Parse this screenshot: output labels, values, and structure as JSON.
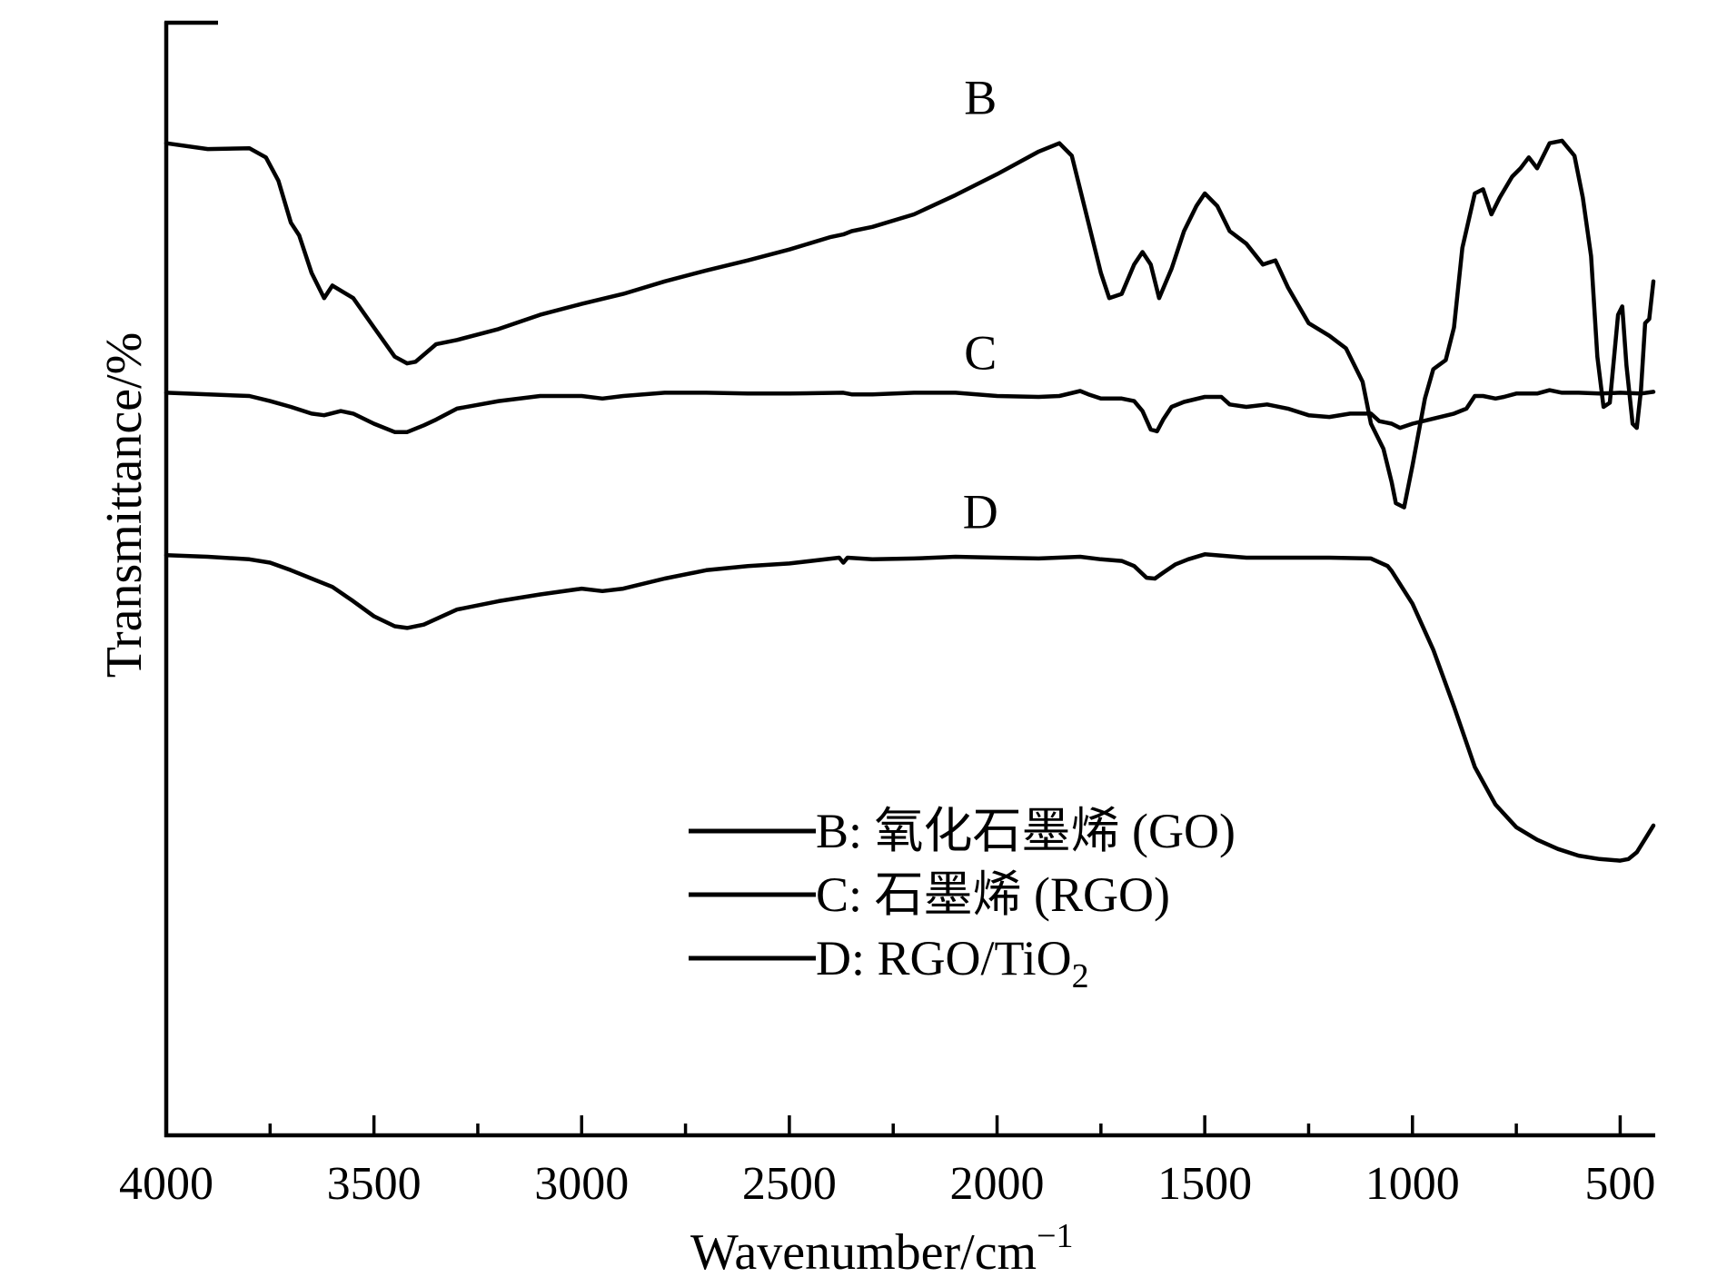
{
  "chart_data": {
    "type": "line",
    "title": "",
    "xlabel": "Wavenumber/cm",
    "xlabel_superscript": "−1",
    "ylabel": "Transmittance/%",
    "xlim": [
      4000,
      420
    ],
    "x_reversed": true,
    "x_ticks": [
      4000,
      3500,
      3000,
      2500,
      2000,
      1500,
      1000,
      500
    ],
    "x_minor_ticks": [
      3750,
      3250,
      2750,
      2250,
      1750,
      1250,
      750
    ],
    "y_ticks": "none",
    "grid": false,
    "legend_position": "center",
    "series": [
      {
        "name": "B",
        "legend": "B: 氧化石墨烯 (GO)",
        "points": [
          [
            4000,
            85.5
          ],
          [
            3900,
            84.8
          ],
          [
            3800,
            84.9
          ],
          [
            3760,
            83.8
          ],
          [
            3730,
            81
          ],
          [
            3700,
            76
          ],
          [
            3680,
            74.5
          ],
          [
            3650,
            70
          ],
          [
            3620,
            67
          ],
          [
            3600,
            68.5
          ],
          [
            3550,
            67
          ],
          [
            3500,
            63.5
          ],
          [
            3450,
            60
          ],
          [
            3420,
            59.2
          ],
          [
            3400,
            59.4
          ],
          [
            3350,
            61.5
          ],
          [
            3300,
            62
          ],
          [
            3200,
            63.3
          ],
          [
            3100,
            65
          ],
          [
            3000,
            66.3
          ],
          [
            2900,
            67.5
          ],
          [
            2800,
            69
          ],
          [
            2700,
            70.3
          ],
          [
            2600,
            71.5
          ],
          [
            2500,
            72.8
          ],
          [
            2400,
            74.3
          ],
          [
            2370,
            74.6
          ],
          [
            2350,
            75
          ],
          [
            2300,
            75.5
          ],
          [
            2200,
            77
          ],
          [
            2100,
            79.3
          ],
          [
            2000,
            81.8
          ],
          [
            1900,
            84.5
          ],
          [
            1850,
            85.5
          ],
          [
            1820,
            84
          ],
          [
            1780,
            76
          ],
          [
            1750,
            70
          ],
          [
            1730,
            67
          ],
          [
            1700,
            67.5
          ],
          [
            1670,
            71
          ],
          [
            1650,
            72.5
          ],
          [
            1630,
            71
          ],
          [
            1610,
            67
          ],
          [
            1580,
            70.5
          ],
          [
            1550,
            75
          ],
          [
            1520,
            78
          ],
          [
            1500,
            79.5
          ],
          [
            1470,
            78
          ],
          [
            1440,
            75
          ],
          [
            1400,
            73.5
          ],
          [
            1360,
            71
          ],
          [
            1330,
            71.5
          ],
          [
            1300,
            68.3
          ],
          [
            1250,
            64
          ],
          [
            1200,
            62.5
          ],
          [
            1160,
            61
          ],
          [
            1120,
            57
          ],
          [
            1100,
            52
          ],
          [
            1070,
            49
          ],
          [
            1050,
            45
          ],
          [
            1040,
            42.5
          ],
          [
            1020,
            42
          ],
          [
            1000,
            47
          ],
          [
            970,
            55
          ],
          [
            950,
            58.5
          ],
          [
            920,
            59.6
          ],
          [
            900,
            63.5
          ],
          [
            880,
            73
          ],
          [
            850,
            79.5
          ],
          [
            830,
            80
          ],
          [
            810,
            77
          ],
          [
            790,
            79
          ],
          [
            760,
            81.5
          ],
          [
            740,
            82.5
          ],
          [
            720,
            83.8
          ],
          [
            700,
            82.5
          ],
          [
            670,
            85.5
          ],
          [
            640,
            85.8
          ],
          [
            610,
            84
          ],
          [
            590,
            79
          ],
          [
            570,
            72
          ],
          [
            555,
            60
          ],
          [
            540,
            54
          ],
          [
            525,
            54.5
          ],
          [
            505,
            65
          ],
          [
            495,
            66
          ],
          [
            485,
            59
          ],
          [
            470,
            52
          ],
          [
            460,
            51.5
          ],
          [
            450,
            56
          ],
          [
            440,
            64
          ],
          [
            430,
            64.5
          ],
          [
            420,
            69
          ]
        ]
      },
      {
        "name": "C",
        "legend": "C: 石墨烯 (RGO)",
        "points": [
          [
            4000,
            55.7
          ],
          [
            3800,
            55.3
          ],
          [
            3750,
            54.7
          ],
          [
            3700,
            54
          ],
          [
            3650,
            53.2
          ],
          [
            3620,
            53
          ],
          [
            3580,
            53.5
          ],
          [
            3550,
            53.2
          ],
          [
            3500,
            52
          ],
          [
            3450,
            51
          ],
          [
            3420,
            51
          ],
          [
            3380,
            51.8
          ],
          [
            3350,
            52.5
          ],
          [
            3300,
            53.8
          ],
          [
            3200,
            54.7
          ],
          [
            3100,
            55.3
          ],
          [
            3000,
            55.3
          ],
          [
            2950,
            55
          ],
          [
            2900,
            55.3
          ],
          [
            2800,
            55.7
          ],
          [
            2700,
            55.7
          ],
          [
            2600,
            55.6
          ],
          [
            2500,
            55.6
          ],
          [
            2370,
            55.7
          ],
          [
            2350,
            55.5
          ],
          [
            2300,
            55.5
          ],
          [
            2200,
            55.7
          ],
          [
            2100,
            55.7
          ],
          [
            2000,
            55.3
          ],
          [
            1900,
            55.2
          ],
          [
            1850,
            55.3
          ],
          [
            1800,
            55.9
          ],
          [
            1780,
            55.5
          ],
          [
            1750,
            55
          ],
          [
            1700,
            55
          ],
          [
            1670,
            54.7
          ],
          [
            1650,
            53.5
          ],
          [
            1630,
            51.3
          ],
          [
            1615,
            51.1
          ],
          [
            1600,
            52.5
          ],
          [
            1580,
            54
          ],
          [
            1550,
            54.6
          ],
          [
            1500,
            55.2
          ],
          [
            1460,
            55.2
          ],
          [
            1440,
            54.3
          ],
          [
            1400,
            54
          ],
          [
            1350,
            54.3
          ],
          [
            1300,
            53.8
          ],
          [
            1250,
            53
          ],
          [
            1200,
            52.8
          ],
          [
            1150,
            53.2
          ],
          [
            1100,
            53.2
          ],
          [
            1080,
            52.3
          ],
          [
            1050,
            52
          ],
          [
            1030,
            51.5
          ],
          [
            1000,
            52
          ],
          [
            950,
            52.6
          ],
          [
            900,
            53.2
          ],
          [
            870,
            53.8
          ],
          [
            850,
            55.3
          ],
          [
            830,
            55.3
          ],
          [
            800,
            55
          ],
          [
            780,
            55.2
          ],
          [
            750,
            55.6
          ],
          [
            720,
            55.6
          ],
          [
            700,
            55.6
          ],
          [
            670,
            56
          ],
          [
            640,
            55.7
          ],
          [
            600,
            55.7
          ],
          [
            550,
            55.6
          ],
          [
            500,
            55.7
          ],
          [
            450,
            55.6
          ],
          [
            420,
            55.8
          ]
        ]
      },
      {
        "name": "D",
        "legend": "D: RGO/TiO₂",
        "legend_main": "D: RGO/TiO",
        "legend_sub": "2",
        "points": [
          [
            4000,
            36.3
          ],
          [
            3900,
            36.1
          ],
          [
            3800,
            35.8
          ],
          [
            3750,
            35.4
          ],
          [
            3700,
            34.5
          ],
          [
            3650,
            33.5
          ],
          [
            3600,
            32.5
          ],
          [
            3550,
            30.8
          ],
          [
            3500,
            29
          ],
          [
            3450,
            27.8
          ],
          [
            3420,
            27.6
          ],
          [
            3380,
            28
          ],
          [
            3300,
            29.8
          ],
          [
            3200,
            30.8
          ],
          [
            3100,
            31.6
          ],
          [
            3000,
            32.3
          ],
          [
            2950,
            32
          ],
          [
            2900,
            32.3
          ],
          [
            2800,
            33.5
          ],
          [
            2700,
            34.5
          ],
          [
            2600,
            35
          ],
          [
            2500,
            35.3
          ],
          [
            2380,
            36
          ],
          [
            2370,
            35.4
          ],
          [
            2360,
            36
          ],
          [
            2300,
            35.8
          ],
          [
            2200,
            35.9
          ],
          [
            2100,
            36.1
          ],
          [
            2000,
            36
          ],
          [
            1900,
            35.9
          ],
          [
            1800,
            36.1
          ],
          [
            1750,
            35.8
          ],
          [
            1700,
            35.6
          ],
          [
            1670,
            35
          ],
          [
            1640,
            33.6
          ],
          [
            1620,
            33.5
          ],
          [
            1600,
            34.2
          ],
          [
            1570,
            35.2
          ],
          [
            1540,
            35.8
          ],
          [
            1500,
            36.4
          ],
          [
            1450,
            36.2
          ],
          [
            1400,
            36
          ],
          [
            1300,
            36
          ],
          [
            1200,
            36
          ],
          [
            1100,
            35.9
          ],
          [
            1060,
            35
          ],
          [
            1050,
            34.4
          ],
          [
            1000,
            30.5
          ],
          [
            950,
            25
          ],
          [
            900,
            18.2
          ],
          [
            850,
            11
          ],
          [
            800,
            6.5
          ],
          [
            750,
            3.8
          ],
          [
            700,
            2.3
          ],
          [
            650,
            1.2
          ],
          [
            600,
            0.4
          ],
          [
            550,
            0
          ],
          [
            500,
            -0.2
          ],
          [
            480,
            0
          ],
          [
            460,
            0.8
          ],
          [
            440,
            2.4
          ],
          [
            420,
            4
          ]
        ]
      }
    ],
    "series_label_positions": {
      "B": [
        2040,
        89
      ],
      "C": [
        2040,
        58.5
      ],
      "D": [
        2040,
        39.5
      ]
    }
  }
}
